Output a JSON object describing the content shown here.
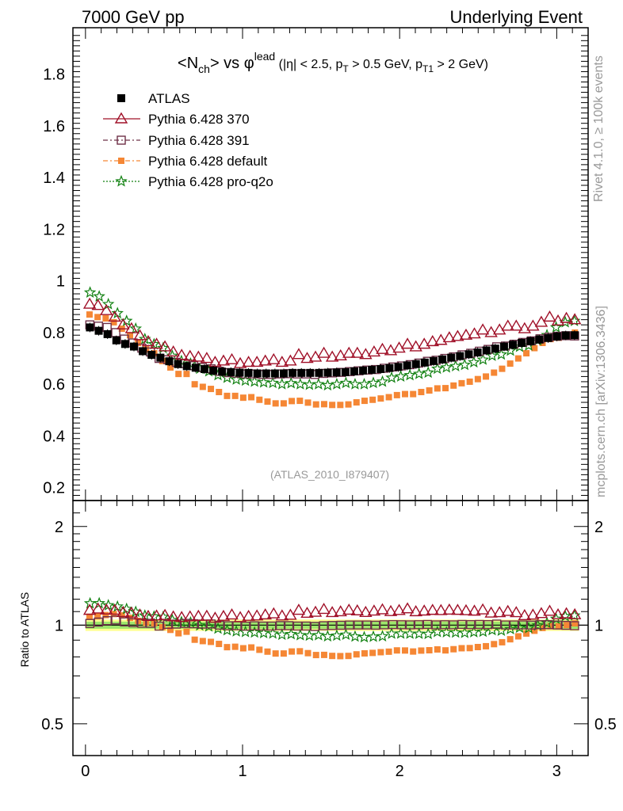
{
  "header": {
    "left": "7000 GeV pp",
    "right": "Underlying Event"
  },
  "title": {
    "main": "<N",
    "main_sub": "ch",
    "mid": "> vs ",
    "phi": "φ",
    "phi_sup": "lead",
    "cuts_a": " (|η| < 2.5, p",
    "cuts_a_sub": "T",
    "cuts_b": " > 0.5 GeV, p",
    "cuts_b_sub": "T1",
    "cuts_c": " > 2 GeV)"
  },
  "side_labels": {
    "rivet": "Rivet 4.1.0, ≥ 100k events",
    "mcplots": "mcplots.cern.ch [arXiv:1306.3436]"
  },
  "watermark": "(ATLAS_2010_I879407)",
  "ratio_ylabel": "Ratio to ATLAS",
  "colors": {
    "atlas": "#000000",
    "p370": "#a01028",
    "p391": "#6e3048",
    "pdefault": "#f58735",
    "pq2o": "#108010",
    "band_inner": "#9ee66c",
    "band_outer": "#ffff90"
  },
  "chart_data": {
    "type": "scatter",
    "xlim": [
      -0.08,
      3.2
    ],
    "ylim": [
      0.15,
      1.98
    ],
    "ratio_ylim": [
      0.4,
      2.4
    ],
    "ratio_scale": "log",
    "x_ticks": [
      "0",
      "1",
      "2",
      "3"
    ],
    "y_ticks": [
      "0.2",
      "0.4",
      "0.6",
      "0.8",
      "1",
      "1.2",
      "1.4",
      "1.6",
      "1.8"
    ],
    "ratio_ticks": [
      "0.5",
      "1",
      "2"
    ],
    "legend": [
      "ATLAS",
      "Pythia 6.428 370",
      "Pythia 6.428 391",
      "Pythia 6.428 default",
      "Pythia 6.428 pro-q2o"
    ],
    "series": [
      {
        "name": "ATLAS",
        "key": "atlas",
        "values": [
          0.82,
          0.807,
          0.794,
          0.77,
          0.756,
          0.746,
          0.728,
          0.714,
          0.703,
          0.689,
          0.678,
          0.67,
          0.664,
          0.659,
          0.653,
          0.649,
          0.647,
          0.645,
          0.644,
          0.642,
          0.642,
          0.642,
          0.642,
          0.644,
          0.644,
          0.644,
          0.644,
          0.645,
          0.646,
          0.647,
          0.65,
          0.653,
          0.656,
          0.659,
          0.663,
          0.667,
          0.673,
          0.678,
          0.684,
          0.69,
          0.696,
          0.703,
          0.709,
          0.716,
          0.723,
          0.731,
          0.738,
          0.746,
          0.753,
          0.76,
          0.767,
          0.773,
          0.779,
          0.785,
          0.789,
          0.79
        ]
      },
      {
        "name": "Pythia 6.428 370",
        "key": "p370",
        "values": [
          0.91,
          0.905,
          0.885,
          0.86,
          0.83,
          0.815,
          0.788,
          0.765,
          0.755,
          0.745,
          0.725,
          0.712,
          0.708,
          0.705,
          0.7,
          0.685,
          0.69,
          0.695,
          0.68,
          0.685,
          0.685,
          0.69,
          0.695,
          0.685,
          0.69,
          0.715,
          0.7,
          0.705,
          0.72,
          0.705,
          0.71,
          0.72,
          0.72,
          0.715,
          0.725,
          0.735,
          0.73,
          0.74,
          0.755,
          0.745,
          0.755,
          0.765,
          0.77,
          0.78,
          0.785,
          0.79,
          0.795,
          0.81,
          0.8,
          0.81,
          0.825,
          0.825,
          0.815,
          0.825,
          0.84,
          0.86,
          0.845,
          0.855,
          0.85
        ]
      },
      {
        "name": "Pythia 6.428 391",
        "key": "p391",
        "values": [
          0.83,
          0.825,
          0.82,
          0.8,
          0.775,
          0.76,
          0.74,
          0.725,
          0.7,
          0.695,
          0.685,
          0.68,
          0.672,
          0.665,
          0.66,
          0.65,
          0.645,
          0.643,
          0.64,
          0.64,
          0.638,
          0.638,
          0.64,
          0.641,
          0.64,
          0.64,
          0.638,
          0.642,
          0.644,
          0.646,
          0.649,
          0.652,
          0.655,
          0.657,
          0.662,
          0.667,
          0.671,
          0.676,
          0.682,
          0.689,
          0.693,
          0.7,
          0.706,
          0.714,
          0.72,
          0.728,
          0.735,
          0.745,
          0.748,
          0.755,
          0.762,
          0.768,
          0.776,
          0.782,
          0.786,
          0.788,
          0.787
        ]
      },
      {
        "name": "Pythia 6.428 default",
        "key": "pdefault",
        "values": [
          0.87,
          0.86,
          0.855,
          0.84,
          0.815,
          0.79,
          0.76,
          0.735,
          0.72,
          0.69,
          0.665,
          0.64,
          0.64,
          0.6,
          0.59,
          0.582,
          0.57,
          0.555,
          0.555,
          0.548,
          0.55,
          0.54,
          0.533,
          0.526,
          0.526,
          0.535,
          0.536,
          0.529,
          0.522,
          0.523,
          0.52,
          0.52,
          0.522,
          0.53,
          0.536,
          0.54,
          0.545,
          0.55,
          0.558,
          0.562,
          0.562,
          0.57,
          0.576,
          0.584,
          0.585,
          0.595,
          0.604,
          0.61,
          0.62,
          0.63,
          0.645,
          0.66,
          0.68,
          0.7,
          0.72,
          0.74,
          0.76,
          0.775,
          0.78,
          0.79,
          0.8
        ]
      },
      {
        "name": "Pythia 6.428 pro-q2o",
        "key": "pq2o",
        "values": [
          0.955,
          0.94,
          0.91,
          0.875,
          0.845,
          0.815,
          0.775,
          0.755,
          0.74,
          0.71,
          0.69,
          0.68,
          0.66,
          0.65,
          0.635,
          0.625,
          0.618,
          0.614,
          0.61,
          0.607,
          0.605,
          0.6,
          0.604,
          0.6,
          0.598,
          0.6,
          0.596,
          0.6,
          0.605,
          0.6,
          0.6,
          0.605,
          0.61,
          0.625,
          0.63,
          0.635,
          0.64,
          0.645,
          0.66,
          0.665,
          0.67,
          0.675,
          0.685,
          0.695,
          0.71,
          0.715,
          0.73,
          0.745,
          0.75,
          0.77,
          0.79,
          0.82,
          0.84,
          0.845
        ]
      }
    ]
  }
}
